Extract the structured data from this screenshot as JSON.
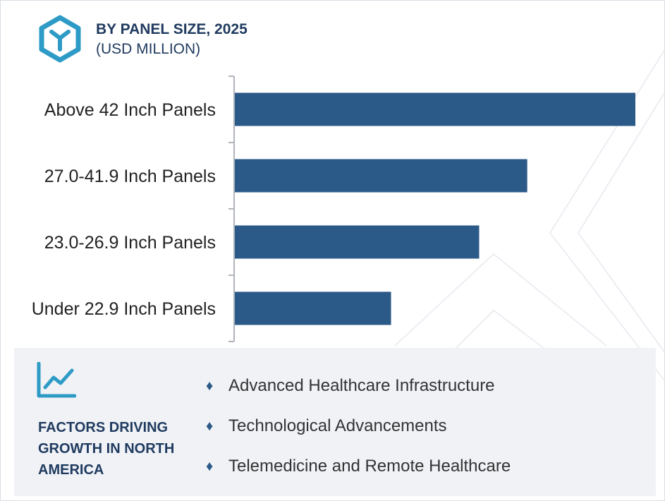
{
  "header": {
    "title": "BY PANEL SIZE, 2025",
    "subtitle": "(USD MILLION)"
  },
  "colors": {
    "bar": "#2c5a88",
    "heading": "#1f3a5f",
    "logo": "#2e9bc6",
    "panel_bg": "#f0f2f6"
  },
  "chart_data": {
    "type": "bar",
    "orientation": "horizontal",
    "title": "BY PANEL SIZE, 2025",
    "subtitle": "(USD MILLION)",
    "categories": [
      "Above 42 Inch Panels",
      "27.0-41.9 Inch Panels",
      "23.0-26.9 Inch Panels",
      "Under 22.9 Inch Panels"
    ],
    "values": [
      100,
      73,
      61,
      39
    ],
    "value_scale": "relative, no axis values printed",
    "xlim": [
      0,
      100
    ],
    "grid": false,
    "legend": "none"
  },
  "factors": {
    "title": "FACTORS DRIVING GROWTH IN NORTH AMERICA",
    "icon": "trend-chart-icon",
    "bullet": "♦",
    "items": [
      "Advanced Healthcare Infrastructure",
      "Technological Advancements",
      "Telemedicine and Remote Healthcare"
    ]
  }
}
